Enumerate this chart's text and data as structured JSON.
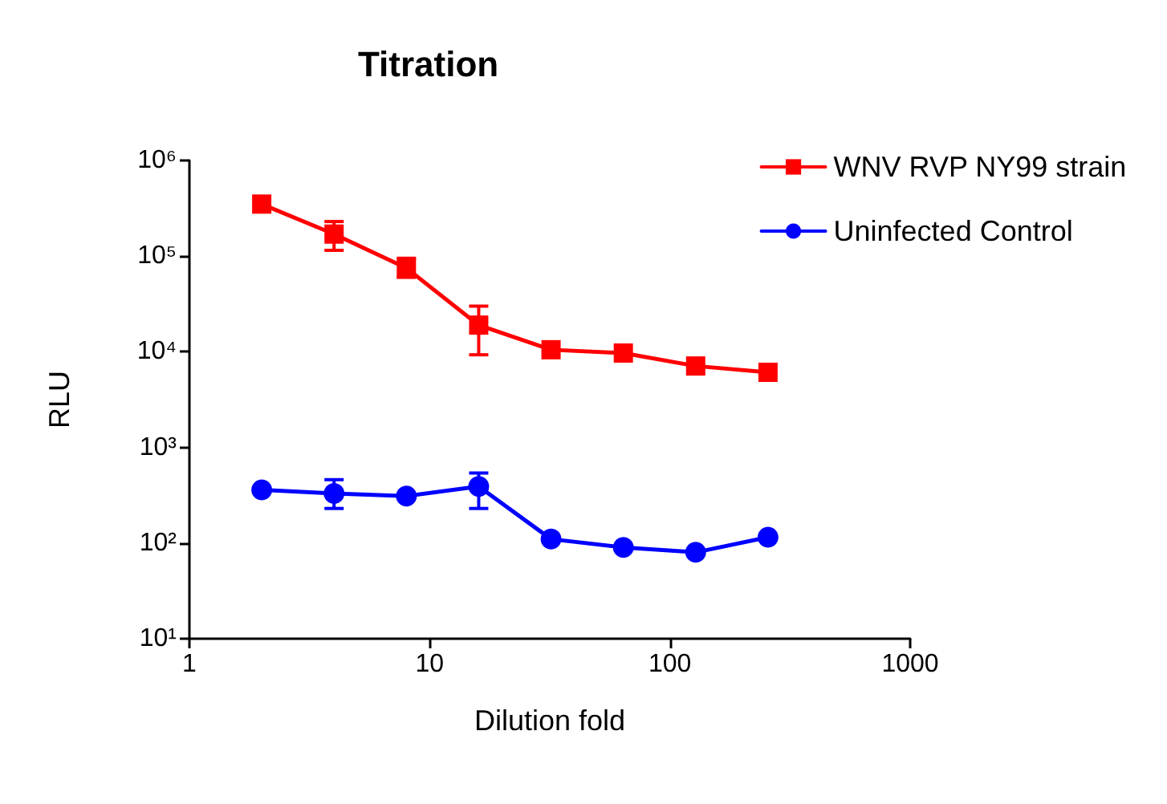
{
  "chart_data": {
    "type": "line",
    "title": "Titration",
    "xlabel": "Dilution fold",
    "ylabel": "RLU",
    "log": "xy",
    "grid": false,
    "legend": "top right",
    "line_style": "solid",
    "x": [
      2,
      4,
      8,
      16,
      32,
      64,
      128,
      256
    ],
    "xlim": [
      1,
      1000
    ],
    "xticks": [
      1,
      10,
      100,
      1000
    ],
    "ylim": [
      10,
      1000000
    ],
    "yticks": [
      {
        "value": 10,
        "label": "10¹"
      },
      {
        "value": 100,
        "label": "10²"
      },
      {
        "value": 1000,
        "label": "10³"
      },
      {
        "value": 10000,
        "label": "10⁴"
      },
      {
        "value": 100000,
        "label": "10⁵"
      },
      {
        "value": 1000000,
        "label": "10⁶"
      }
    ],
    "series": [
      {
        "name": "WNV RVP NY99 strain",
        "color": "#ff0000",
        "marker": "square",
        "values": [
          350000,
          170000,
          75000,
          19000,
          10500,
          9700,
          7100,
          6100
        ],
        "errors": [
          null,
          [
            115000,
            230000
          ],
          [
            60000,
            95000
          ],
          [
            9300,
            30000
          ],
          null,
          null,
          null,
          null
        ]
      },
      {
        "name": "Uninfected Control",
        "color": "#0000ff",
        "marker": "circle",
        "values": [
          360,
          330,
          310,
          390,
          110,
          90,
          80,
          115
        ],
        "errors": [
          null,
          [
            230,
            460
          ],
          null,
          [
            230,
            540
          ],
          null,
          null,
          null,
          null
        ]
      }
    ]
  }
}
